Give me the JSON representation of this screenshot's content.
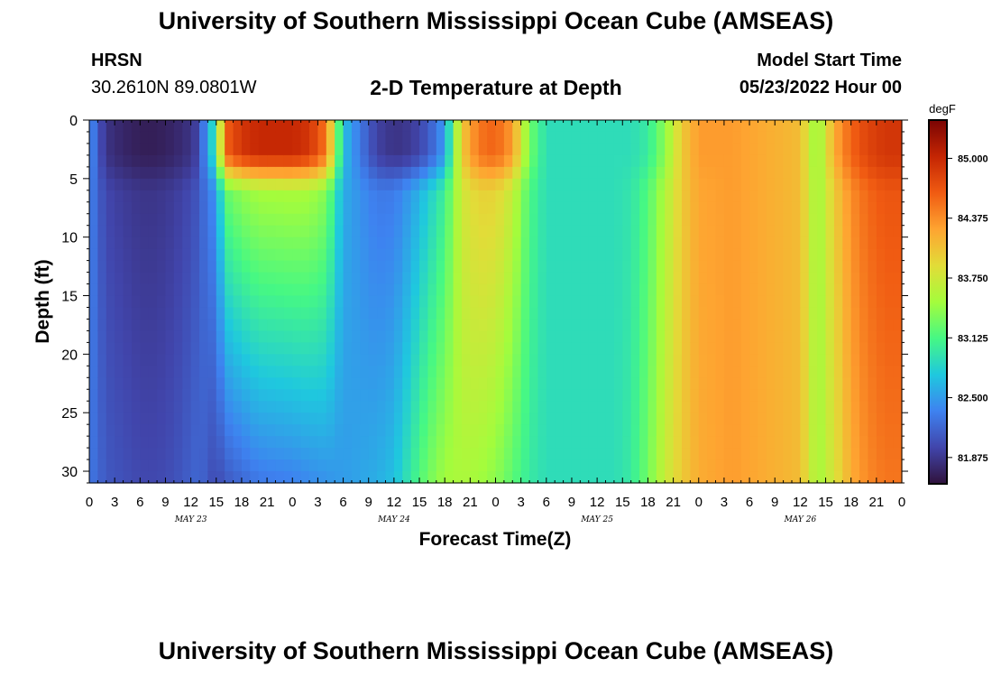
{
  "header": {
    "title": "University of Southern Mississippi Ocean Cube (AMSEAS)",
    "station": "HRSN",
    "coords": "30.2610N  89.0801W",
    "subtitle": "2-D Temperature at Depth",
    "model_start_label": "Model Start Time",
    "model_start_value": "05/23/2022 Hour 00"
  },
  "footer": {
    "title": "University of Southern Mississippi Ocean Cube (AMSEAS)"
  },
  "chart_data": {
    "type": "heatmap",
    "title": "2-D Temperature at Depth",
    "xlabel": "Forecast Time(Z)",
    "ylabel": "Depth (ft)",
    "x_hours_range": [
      0,
      96
    ],
    "x_tick_step_hours": 3,
    "x_tick_labels": [
      "0",
      "3",
      "6",
      "9",
      "12",
      "15",
      "18",
      "21",
      "0",
      "3",
      "6",
      "9",
      "12",
      "15",
      "18",
      "21",
      "0",
      "3",
      "6",
      "9",
      "12",
      "15",
      "18",
      "21",
      "0",
      "3",
      "6",
      "9",
      "12",
      "15",
      "18",
      "21",
      "0"
    ],
    "date_labels": [
      {
        "text": "MAY 23",
        "hour": 12
      },
      {
        "text": "MAY 24",
        "hour": 36
      },
      {
        "text": "MAY 25",
        "hour": 60
      },
      {
        "text": "MAY 26",
        "hour": 84
      }
    ],
    "ylim": [
      0,
      31
    ],
    "y_ticks": [
      0,
      5,
      10,
      15,
      20,
      25,
      30
    ],
    "colorbar": {
      "unit": "degF",
      "range": [
        81.6,
        85.4
      ],
      "ticks": [
        "85.000",
        "84.375",
        "83.750",
        "83.125",
        "82.500",
        "81.875"
      ],
      "colors": [
        "#30123b",
        "#4145ab",
        "#3e82f0",
        "#1fc8de",
        "#46f884",
        "#a4fc3c",
        "#e2dc38",
        "#fea431",
        "#f05b12",
        "#c42503",
        "#7a0403"
      ]
    },
    "temperature_profile": {
      "hours": [
        0,
        1,
        2,
        4,
        6,
        8,
        10,
        12,
        13,
        14,
        15,
        16,
        18,
        20,
        24,
        26,
        28,
        30,
        32,
        34,
        36,
        38,
        40,
        42,
        44,
        46,
        48,
        50,
        52,
        54,
        56,
        58,
        60,
        62,
        64,
        66,
        68,
        70,
        72,
        76,
        80,
        84,
        86,
        88,
        90,
        92,
        94,
        96
      ],
      "surface": [
        82.5,
        82.1,
        81.85,
        81.75,
        81.7,
        81.7,
        81.75,
        81.85,
        82.0,
        82.6,
        83.0,
        84.6,
        84.9,
        85.0,
        85.0,
        84.9,
        84.5,
        82.7,
        82.3,
        81.95,
        81.85,
        81.9,
        82.1,
        82.5,
        84.0,
        84.5,
        84.6,
        84.3,
        83.3,
        82.9,
        82.9,
        82.9,
        82.9,
        82.9,
        82.9,
        83.0,
        83.4,
        84.0,
        84.3,
        84.3,
        84.2,
        84.1,
        83.4,
        84.2,
        84.6,
        84.8,
        84.9,
        84.9
      ],
      "bottom": [
        82.3,
        82.2,
        82.1,
        82.05,
        82.0,
        82.0,
        82.05,
        82.15,
        82.2,
        82.1,
        82.0,
        82.1,
        82.2,
        82.3,
        82.35,
        82.4,
        82.45,
        82.5,
        82.55,
        82.6,
        82.7,
        83.0,
        83.3,
        83.5,
        83.55,
        83.5,
        83.4,
        83.2,
        83.0,
        82.9,
        82.9,
        82.9,
        82.9,
        82.9,
        83.0,
        83.3,
        83.7,
        84.0,
        84.2,
        84.3,
        84.2,
        84.1,
        83.5,
        83.8,
        84.2,
        84.4,
        84.5,
        84.5
      ]
    }
  }
}
